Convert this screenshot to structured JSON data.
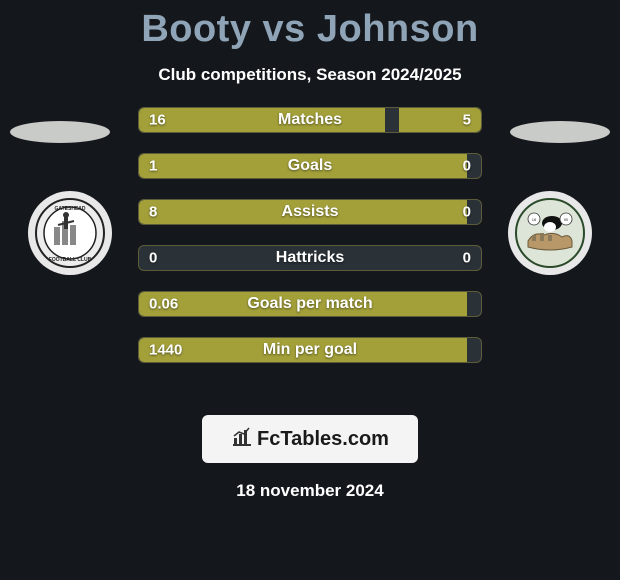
{
  "title": "Booty vs Johnson",
  "subtitle": "Club competitions, Season 2024/2025",
  "left_club": {
    "name": "Gateshead Football Club"
  },
  "right_club": {
    "name": "Club Badge"
  },
  "stats": [
    {
      "label": "Matches",
      "left_val": "16",
      "right_val": "5",
      "left_pct": 72,
      "right_pct": 24
    },
    {
      "label": "Goals",
      "left_val": "1",
      "right_val": "0",
      "left_pct": 96,
      "right_pct": 0
    },
    {
      "label": "Assists",
      "left_val": "8",
      "right_val": "0",
      "left_pct": 96,
      "right_pct": 0
    },
    {
      "label": "Hattricks",
      "left_val": "0",
      "right_val": "0",
      "left_pct": 0,
      "right_pct": 0
    },
    {
      "label": "Goals per match",
      "left_val": "0.06",
      "right_val": "",
      "left_pct": 96,
      "right_pct": 0
    },
    {
      "label": "Min per goal",
      "left_val": "1440",
      "right_val": "",
      "left_pct": 96,
      "right_pct": 0
    }
  ],
  "brand": "FcTables.com",
  "date": "18 november 2024",
  "colors": {
    "bg": "#14181c",
    "title": "#8fa5b7",
    "bar_fill": "#a3a03a",
    "bar_empty": "#2a3238"
  }
}
